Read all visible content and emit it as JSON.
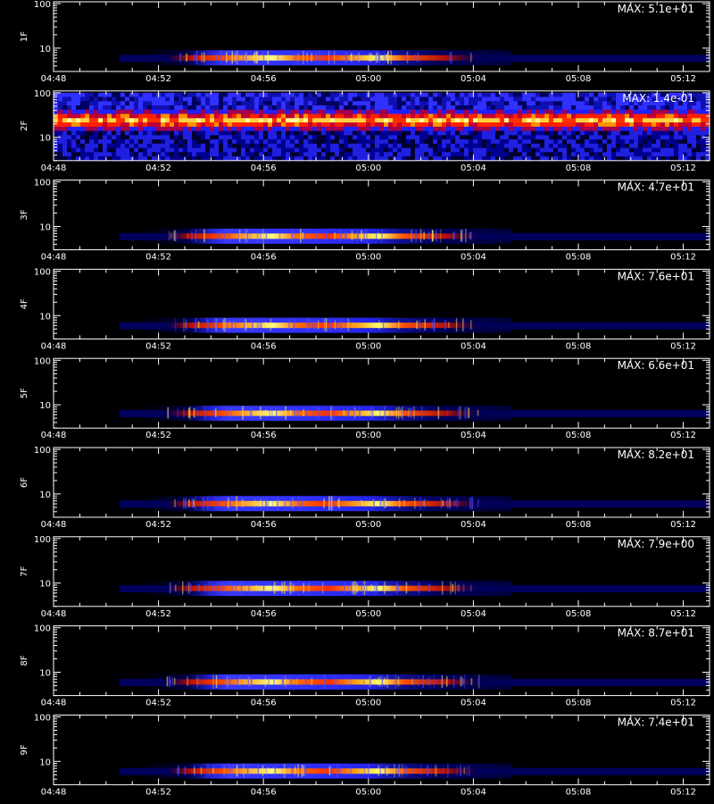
{
  "chart_data": {
    "type": "heatmap",
    "xlabel": "",
    "x_ticks": [
      "04:48",
      "04:52",
      "04:56",
      "05:00",
      "05:04",
      "05:08",
      "05:12"
    ],
    "x_tick_minutes": [
      288,
      292,
      296,
      300,
      304,
      308,
      312
    ],
    "xlim_minutes": [
      288,
      313
    ],
    "y_scale": "log",
    "ylim": [
      3,
      110
    ],
    "y_ticks": [
      "10",
      "100"
    ],
    "y_tick_values": [
      10,
      100
    ],
    "colormap": [
      "#000000",
      "#00007a",
      "#1a1aff",
      "#b00040",
      "#ff2000",
      "#ff9000",
      "#ffff60",
      "#ffffff"
    ],
    "panels": [
      {
        "name": "1F",
        "max_label": "MAX: 5.1e+01",
        "pattern": "burst",
        "center_y": 6.2
      },
      {
        "name": "2F",
        "max_label": "MAX: 1.4e-01",
        "pattern": "noise",
        "center_y": 30
      },
      {
        "name": "3F",
        "max_label": "MAX: 4.7e+01",
        "pattern": "burst",
        "center_y": 6.2
      },
      {
        "name": "4F",
        "max_label": "MAX: 7.6e+01",
        "pattern": "burst",
        "center_y": 6.2
      },
      {
        "name": "5F",
        "max_label": "MAX: 6.6e+01",
        "pattern": "burst",
        "center_y": 6.6
      },
      {
        "name": "6F",
        "max_label": "MAX: 8.2e+01",
        "pattern": "burst",
        "center_y": 6.2
      },
      {
        "name": "7F",
        "max_label": "MAX: 7.9e+00",
        "pattern": "burst",
        "center_y": 7.8
      },
      {
        "name": "8F",
        "max_label": "MAX: 8.7e+01",
        "pattern": "burst",
        "center_y": 6.2
      },
      {
        "name": "9F",
        "max_label": "MAX: 7.4e+01",
        "pattern": "burst",
        "center_y": 6.2
      }
    ]
  }
}
